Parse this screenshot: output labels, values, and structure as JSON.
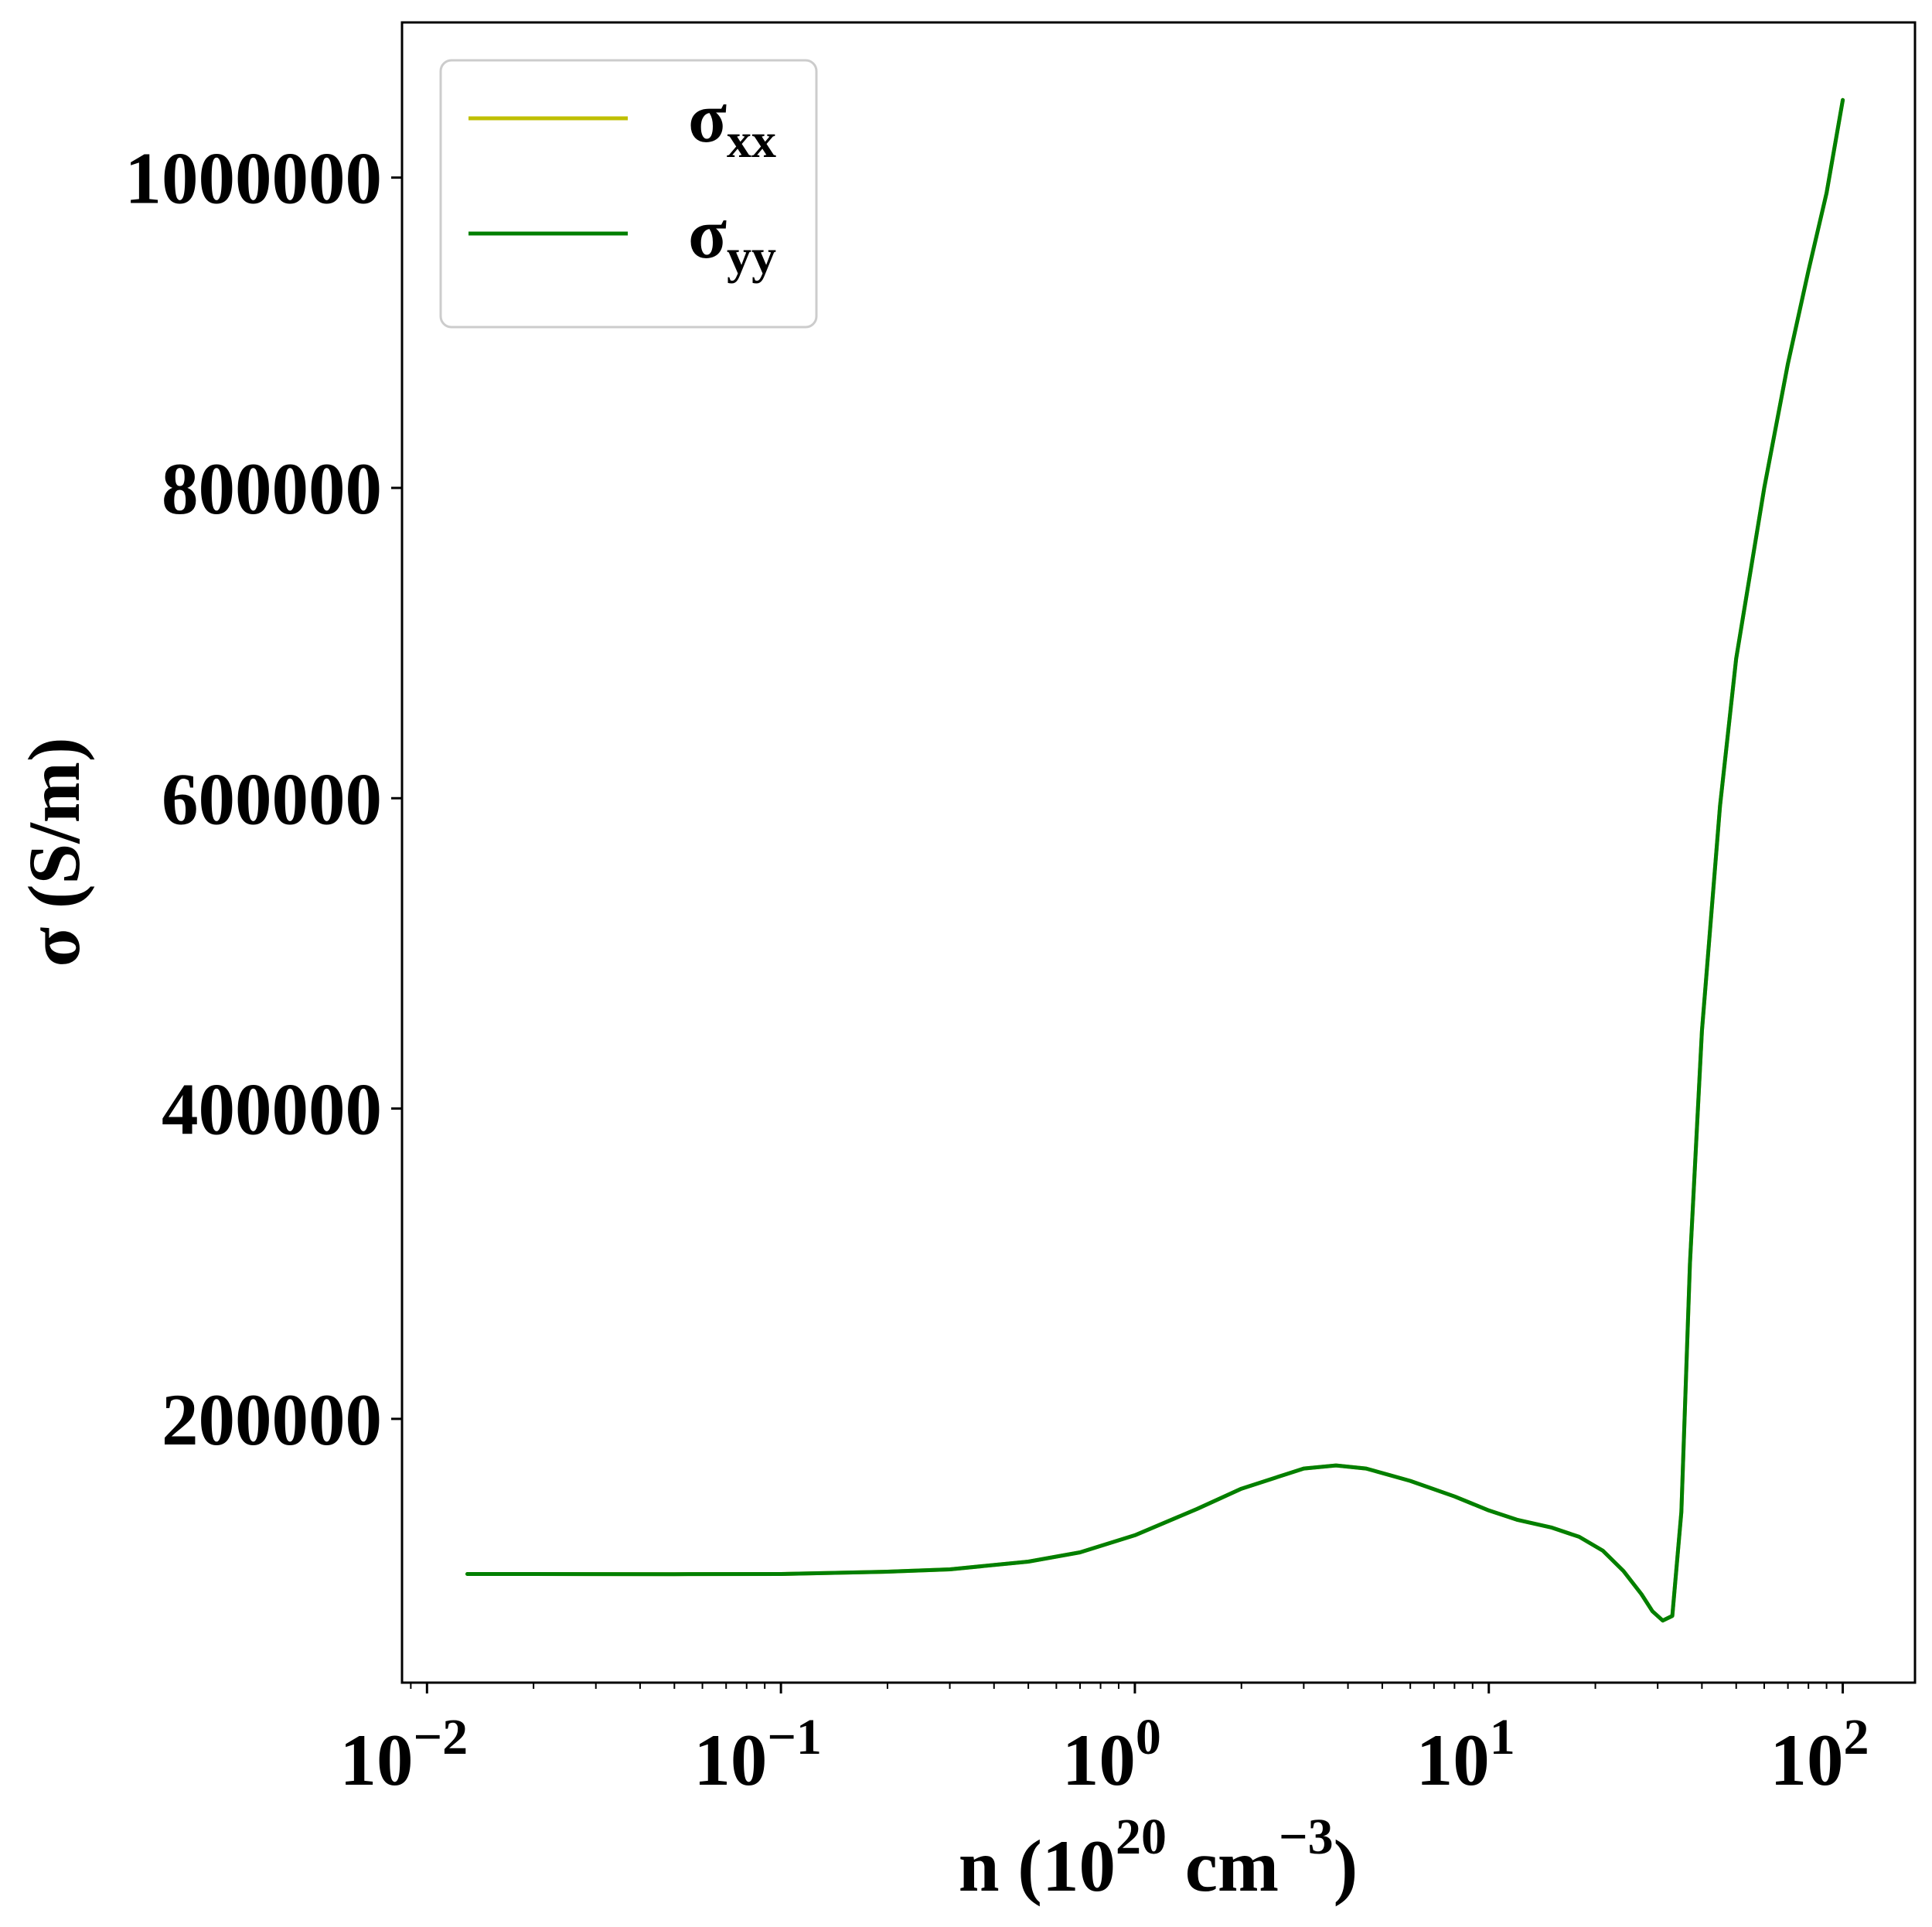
{
  "chart_data": {
    "type": "line",
    "title": "",
    "xlabel": {
      "base": "n (10",
      "sup1": "20",
      "mid": " cm",
      "sup2": "−3",
      "end": ")"
    },
    "ylabel": "σ (S/m)",
    "x_scale": "log",
    "xlim": [
      0.0085,
      160
    ],
    "ylim": [
      30000,
      1100000
    ],
    "grid": false,
    "legend_placement": "upper-left",
    "x_ticks": [
      {
        "value": 0.01,
        "base": "10",
        "exp": "−2"
      },
      {
        "value": 0.1,
        "base": "10",
        "exp": "−1"
      },
      {
        "value": 1,
        "base": "10",
        "exp": "0"
      },
      {
        "value": 10,
        "base": "10",
        "exp": "1"
      },
      {
        "value": 100,
        "base": "10",
        "exp": "2"
      }
    ],
    "y_ticks": [
      {
        "value": 200000,
        "label": "200000"
      },
      {
        "value": 400000,
        "label": "400000"
      },
      {
        "value": 600000,
        "label": "600000"
      },
      {
        "value": 800000,
        "label": "800000"
      },
      {
        "value": 1000000,
        "label": "1000000"
      }
    ],
    "series": [
      {
        "name": {
          "base": "σ",
          "sub": "xx"
        },
        "color": "#bfbf00",
        "x": [
          0.013,
          0.02,
          0.05,
          0.1,
          0.2,
          0.3,
          0.5,
          0.7,
          1.0,
          1.5,
          2.0,
          3.0,
          3.7,
          4.5,
          6.0,
          8.0,
          10.0,
          12.0,
          15.0,
          18.0,
          21.0,
          24.0,
          27.0,
          29.0,
          31.0,
          33.0,
          35.0,
          37.0,
          40.0,
          45.0,
          50.0,
          60.0,
          70.0,
          80.0,
          90.0,
          100.0
        ],
        "y": [
          100000,
          100000,
          99900,
          100000,
          101500,
          103000,
          108000,
          114000,
          125000,
          142000,
          155000,
          168000,
          170000,
          168000,
          160000,
          150000,
          141000,
          135000,
          130000,
          124000,
          115000,
          102000,
          87000,
          76000,
          70000,
          73000,
          140000,
          300000,
          450000,
          595000,
          690000,
          800000,
          880000,
          940000,
          990000,
          1050000
        ]
      },
      {
        "name": {
          "base": "σ",
          "sub": "yy"
        },
        "color": "#007f00",
        "x": [
          0.013,
          0.02,
          0.05,
          0.1,
          0.2,
          0.3,
          0.5,
          0.7,
          1.0,
          1.5,
          2.0,
          3.0,
          3.7,
          4.5,
          6.0,
          8.0,
          10.0,
          12.0,
          15.0,
          18.0,
          21.0,
          24.0,
          27.0,
          29.0,
          31.0,
          33.0,
          35.0,
          37.0,
          40.0,
          45.0,
          50.0,
          60.0,
          70.0,
          80.0,
          90.0,
          100.0
        ],
        "y": [
          100000,
          100000,
          99900,
          100000,
          101500,
          103000,
          108000,
          114000,
          125000,
          142000,
          155000,
          168000,
          170000,
          168000,
          160000,
          150000,
          141000,
          135000,
          130000,
          124000,
          115000,
          102000,
          87000,
          76000,
          70000,
          73000,
          140000,
          300000,
          450000,
          595000,
          690000,
          800000,
          880000,
          940000,
          990000,
          1050000
        ]
      }
    ]
  }
}
